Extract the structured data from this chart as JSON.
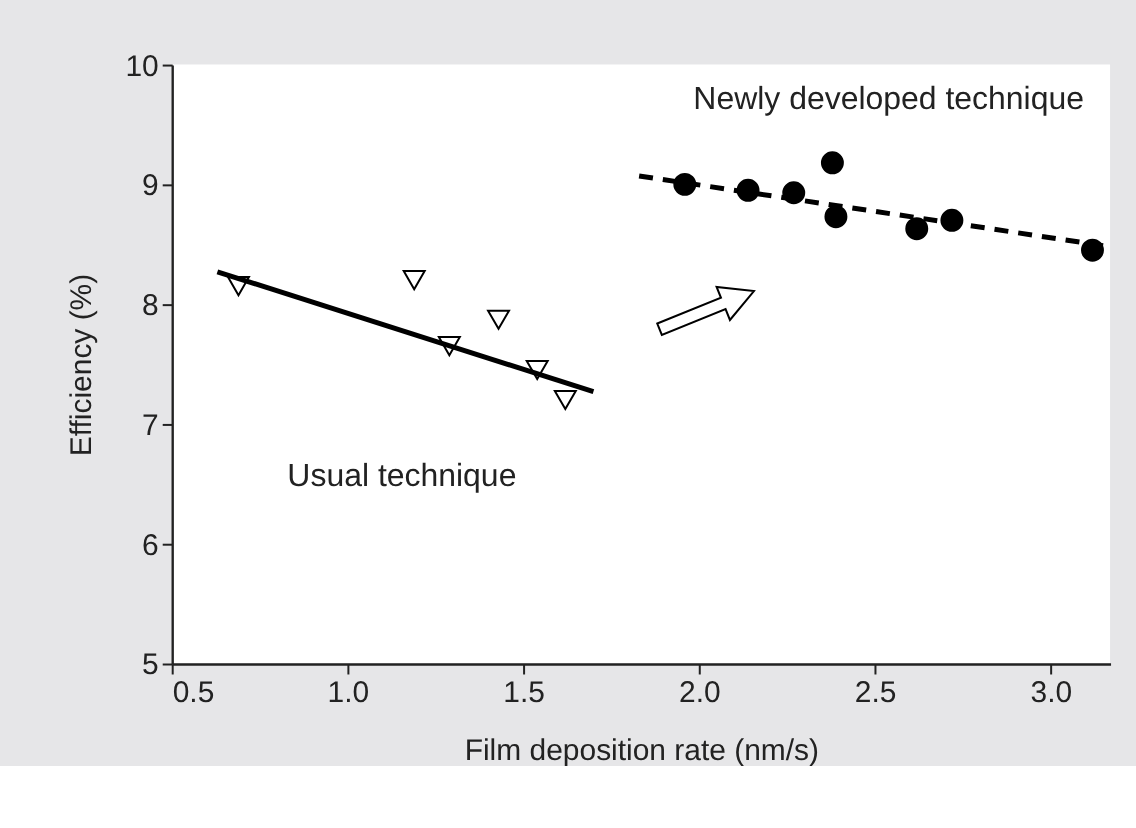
{
  "chart_data": {
    "type": "scatter",
    "xlabel": "Film deposition rate  (nm/s)",
    "ylabel": "Efficiency  (%)",
    "xlim": [
      0.5,
      3.17
    ],
    "ylim": [
      5,
      10
    ],
    "xticks": [
      {
        "value": 0.5,
        "label": "0.5"
      },
      {
        "value": 1,
        "label": "1.0"
      },
      {
        "value": 1.5,
        "label": "1.5"
      },
      {
        "value": 2,
        "label": "2.0"
      },
      {
        "value": 2.5,
        "label": "2.5"
      },
      {
        "value": 3,
        "label": "3.0"
      }
    ],
    "yticks": [
      5,
      6,
      7,
      8,
      9,
      10
    ],
    "grid": false,
    "series": [
      {
        "name": "Usual technique",
        "marker": "triangle",
        "color": "#ffffff",
        "x": [
          0.69,
          1.19,
          1.29,
          1.43,
          1.54,
          1.62
        ],
        "values": [
          8.15,
          8.2,
          7.65,
          7.87,
          7.45,
          7.2
        ]
      },
      {
        "name": "Newly developed technique",
        "marker": "circle",
        "color": "#000000",
        "x": [
          1.96,
          2.14,
          2.27,
          2.38,
          2.39,
          2.62,
          2.72,
          3.12
        ],
        "values": [
          9.0,
          8.95,
          8.93,
          9.18,
          8.73,
          8.63,
          8.7,
          8.45
        ]
      },
      {
        "type": "line",
        "line_style": "solid",
        "color": "#000000",
        "x": [
          0.63,
          1.7
        ],
        "values": [
          8.27,
          7.27
        ]
      },
      {
        "type": "line",
        "line_style": "dashed",
        "color": "#000000",
        "x": [
          1.83,
          3.17
        ],
        "values": [
          9.07,
          8.48
        ]
      }
    ]
  }
}
